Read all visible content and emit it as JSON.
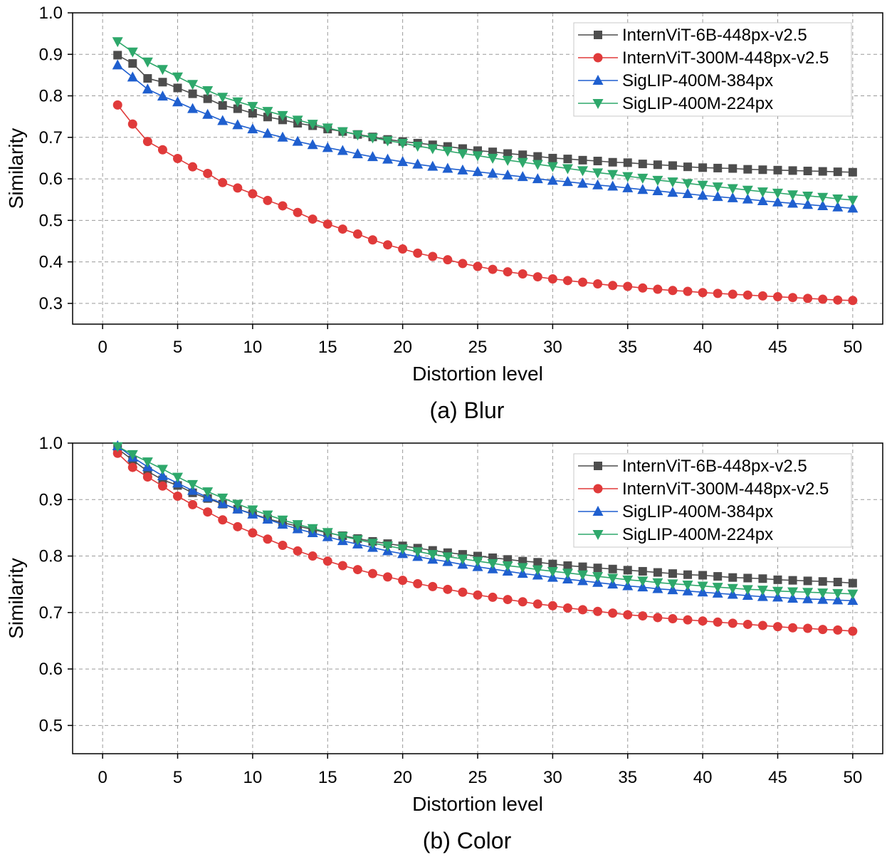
{
  "chart_data": [
    {
      "type": "line",
      "caption": "(a) Blur",
      "xlabel": "Distortion level",
      "ylabel": "Similarity",
      "xlim": [
        -2,
        52
      ],
      "ylim": [
        0.25,
        1.0
      ],
      "xticks": [
        0,
        5,
        10,
        15,
        20,
        25,
        30,
        35,
        40,
        45,
        50
      ],
      "yticks": [
        0.3,
        0.4,
        0.5,
        0.6,
        0.7,
        0.8,
        0.9,
        1.0
      ],
      "ytick_labels": [
        "0.3",
        "0.4",
        "0.5",
        "0.6",
        "0.7",
        "0.8",
        "0.9",
        "1.0"
      ],
      "grid": true,
      "legend_position": "top-right",
      "x": [
        1,
        2,
        3,
        4,
        5,
        6,
        7,
        8,
        9,
        10,
        11,
        12,
        13,
        14,
        15,
        16,
        17,
        18,
        19,
        20,
        21,
        22,
        23,
        24,
        25,
        26,
        27,
        28,
        29,
        30,
        31,
        32,
        33,
        34,
        35,
        36,
        37,
        38,
        39,
        40,
        41,
        42,
        43,
        44,
        45,
        46,
        47,
        48,
        49,
        50
      ],
      "series": [
        {
          "name": "InternViT-6B-448px-v2.5",
          "color": "#4d4d4d",
          "marker": "square",
          "values": [
            0.898,
            0.878,
            0.842,
            0.833,
            0.819,
            0.805,
            0.793,
            0.777,
            0.769,
            0.758,
            0.749,
            0.742,
            0.734,
            0.728,
            0.72,
            0.714,
            0.707,
            0.701,
            0.695,
            0.69,
            0.686,
            0.682,
            0.678,
            0.673,
            0.668,
            0.665,
            0.661,
            0.658,
            0.654,
            0.65,
            0.648,
            0.645,
            0.643,
            0.64,
            0.639,
            0.636,
            0.634,
            0.632,
            0.629,
            0.627,
            0.626,
            0.625,
            0.623,
            0.622,
            0.621,
            0.62,
            0.619,
            0.618,
            0.617,
            0.616
          ]
        },
        {
          "name": "InternViT-300M-448px-v2.5",
          "color": "#e03a3a",
          "marker": "circle",
          "values": [
            0.778,
            0.732,
            0.69,
            0.67,
            0.649,
            0.629,
            0.613,
            0.591,
            0.578,
            0.564,
            0.548,
            0.535,
            0.519,
            0.503,
            0.491,
            0.479,
            0.467,
            0.453,
            0.441,
            0.431,
            0.421,
            0.413,
            0.405,
            0.396,
            0.389,
            0.382,
            0.376,
            0.371,
            0.364,
            0.359,
            0.355,
            0.351,
            0.347,
            0.343,
            0.341,
            0.337,
            0.334,
            0.331,
            0.329,
            0.326,
            0.324,
            0.322,
            0.32,
            0.318,
            0.316,
            0.314,
            0.312,
            0.31,
            0.308,
            0.307
          ]
        },
        {
          "name": "SigLIP-400M-384px",
          "color": "#1f5fcf",
          "marker": "triangle-up",
          "values": [
            0.874,
            0.845,
            0.816,
            0.799,
            0.785,
            0.769,
            0.755,
            0.74,
            0.73,
            0.72,
            0.709,
            0.7,
            0.69,
            0.682,
            0.675,
            0.668,
            0.66,
            0.653,
            0.647,
            0.641,
            0.635,
            0.63,
            0.625,
            0.621,
            0.617,
            0.613,
            0.609,
            0.605,
            0.6,
            0.596,
            0.593,
            0.589,
            0.585,
            0.582,
            0.578,
            0.574,
            0.571,
            0.567,
            0.564,
            0.56,
            0.557,
            0.554,
            0.551,
            0.547,
            0.544,
            0.541,
            0.538,
            0.535,
            0.532,
            0.529
          ]
        },
        {
          "name": "SigLIP-400M-224px",
          "color": "#2ea86b",
          "marker": "triangle-down",
          "values": [
            0.931,
            0.906,
            0.882,
            0.864,
            0.846,
            0.828,
            0.813,
            0.797,
            0.786,
            0.775,
            0.763,
            0.753,
            0.742,
            0.732,
            0.723,
            0.714,
            0.706,
            0.699,
            0.692,
            0.686,
            0.679,
            0.673,
            0.667,
            0.661,
            0.656,
            0.65,
            0.645,
            0.64,
            0.635,
            0.63,
            0.625,
            0.62,
            0.615,
            0.611,
            0.606,
            0.602,
            0.597,
            0.593,
            0.589,
            0.585,
            0.581,
            0.577,
            0.573,
            0.569,
            0.566,
            0.562,
            0.559,
            0.556,
            0.552,
            0.549
          ]
        }
      ]
    },
    {
      "type": "line",
      "caption": "(b) Color",
      "xlabel": "Distortion level",
      "ylabel": "Similarity",
      "xlim": [
        -2,
        52
      ],
      "ylim": [
        0.45,
        1.0
      ],
      "xticks": [
        0,
        5,
        10,
        15,
        20,
        25,
        30,
        35,
        40,
        45,
        50
      ],
      "yticks": [
        0.5,
        0.6,
        0.7,
        0.8,
        0.9,
        1.0
      ],
      "ytick_labels": [
        "0.5",
        "0.6",
        "0.7",
        "0.8",
        "0.9",
        "1.0"
      ],
      "grid": true,
      "legend_position": "top-right",
      "x": [
        1,
        2,
        3,
        4,
        5,
        6,
        7,
        8,
        9,
        10,
        11,
        12,
        13,
        14,
        15,
        16,
        17,
        18,
        19,
        20,
        21,
        22,
        23,
        24,
        25,
        26,
        27,
        28,
        29,
        30,
        31,
        32,
        33,
        34,
        35,
        36,
        37,
        38,
        39,
        40,
        41,
        42,
        43,
        44,
        45,
        46,
        47,
        48,
        49,
        50
      ],
      "series": [
        {
          "name": "InternViT-6B-448px-v2.5",
          "color": "#4d4d4d",
          "marker": "square",
          "values": [
            0.99,
            0.97,
            0.95,
            0.935,
            0.925,
            0.912,
            0.902,
            0.892,
            0.883,
            0.875,
            0.866,
            0.859,
            0.853,
            0.847,
            0.841,
            0.836,
            0.831,
            0.826,
            0.822,
            0.818,
            0.814,
            0.81,
            0.806,
            0.803,
            0.8,
            0.797,
            0.794,
            0.791,
            0.789,
            0.786,
            0.783,
            0.781,
            0.779,
            0.777,
            0.775,
            0.773,
            0.771,
            0.769,
            0.767,
            0.766,
            0.764,
            0.762,
            0.761,
            0.76,
            0.758,
            0.757,
            0.756,
            0.755,
            0.754,
            0.752
          ]
        },
        {
          "name": "InternViT-300M-448px-v2.5",
          "color": "#e03a3a",
          "marker": "circle",
          "values": [
            0.982,
            0.957,
            0.94,
            0.924,
            0.906,
            0.891,
            0.878,
            0.864,
            0.852,
            0.841,
            0.83,
            0.819,
            0.809,
            0.8,
            0.791,
            0.783,
            0.776,
            0.769,
            0.763,
            0.757,
            0.751,
            0.746,
            0.741,
            0.736,
            0.731,
            0.727,
            0.723,
            0.719,
            0.715,
            0.712,
            0.708,
            0.705,
            0.702,
            0.699,
            0.696,
            0.694,
            0.691,
            0.689,
            0.687,
            0.685,
            0.683,
            0.681,
            0.679,
            0.677,
            0.675,
            0.673,
            0.672,
            0.67,
            0.669,
            0.667
          ]
        },
        {
          "name": "SigLIP-400M-384px",
          "color": "#1f5fcf",
          "marker": "triangle-up",
          "values": [
            0.995,
            0.975,
            0.958,
            0.942,
            0.929,
            0.916,
            0.904,
            0.893,
            0.883,
            0.874,
            0.865,
            0.856,
            0.848,
            0.841,
            0.834,
            0.827,
            0.821,
            0.815,
            0.809,
            0.804,
            0.799,
            0.794,
            0.79,
            0.785,
            0.781,
            0.777,
            0.773,
            0.769,
            0.766,
            0.762,
            0.759,
            0.756,
            0.753,
            0.75,
            0.747,
            0.745,
            0.742,
            0.74,
            0.738,
            0.736,
            0.734,
            0.732,
            0.73,
            0.728,
            0.727,
            0.725,
            0.724,
            0.723,
            0.722,
            0.721
          ]
        },
        {
          "name": "SigLIP-400M-224px",
          "color": "#2ea86b",
          "marker": "triangle-down",
          "values": [
            0.994,
            0.98,
            0.967,
            0.954,
            0.94,
            0.927,
            0.914,
            0.903,
            0.892,
            0.882,
            0.873,
            0.864,
            0.856,
            0.849,
            0.842,
            0.835,
            0.829,
            0.823,
            0.818,
            0.813,
            0.808,
            0.803,
            0.799,
            0.795,
            0.791,
            0.787,
            0.783,
            0.78,
            0.776,
            0.773,
            0.77,
            0.767,
            0.764,
            0.761,
            0.758,
            0.756,
            0.753,
            0.751,
            0.749,
            0.747,
            0.745,
            0.743,
            0.741,
            0.74,
            0.738,
            0.737,
            0.736,
            0.735,
            0.734,
            0.733
          ]
        }
      ]
    }
  ]
}
